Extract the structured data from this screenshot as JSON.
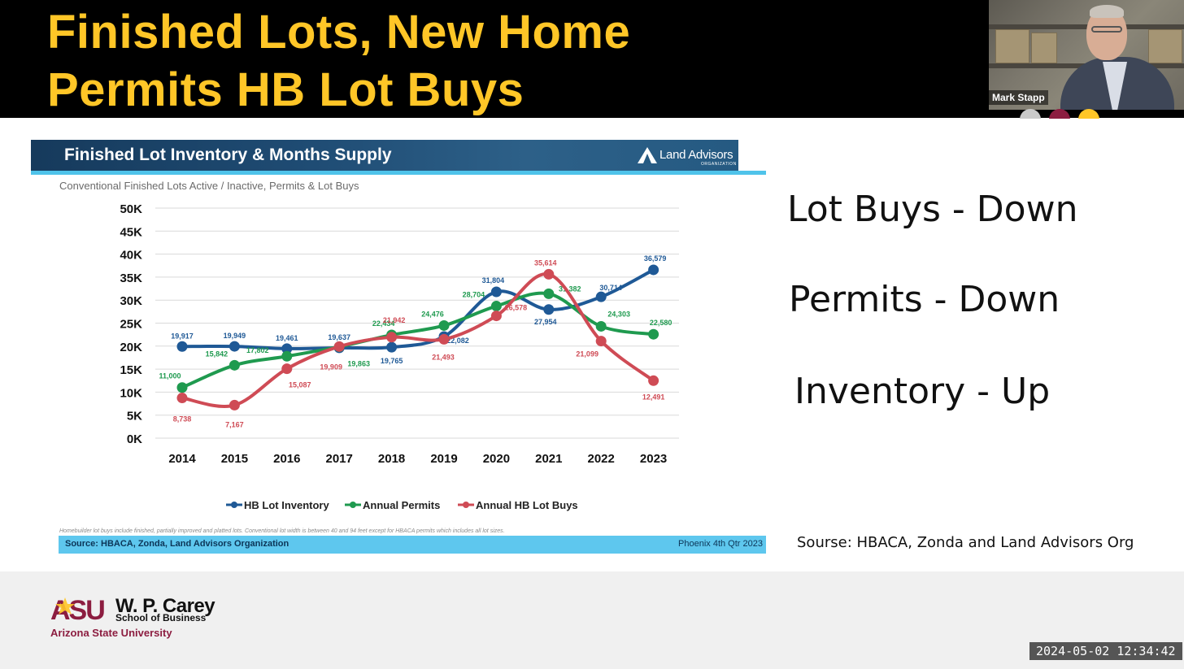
{
  "slide": {
    "title_line1": "Finished Lots, New Home",
    "title_line2": "Permits HB Lot Buys"
  },
  "participant": {
    "name": "Mark Stapp"
  },
  "chart_panel": {
    "header_title": "Finished Lot Inventory & Months Supply",
    "logo_text": "Land Advisors",
    "logo_subtext": "ORGANIZATION",
    "subtitle": "Conventional Finished Lots Active / Inactive, Permits & Lot Buys",
    "footnote": "Homebuilder lot buys include finished, partially improved and platted lots. Conventional lot width is between 40 and 94 feet except for HBACA permits which includes all lot sizes.",
    "source_left": "Source: HBACA, Zonda, Land Advisors Organization",
    "source_right": "Phoenix 4th Qtr 2023",
    "header_color": "#1f4c74",
    "accent_color": "#5ec7ee"
  },
  "chart_data": {
    "type": "line",
    "categories": [
      "2014",
      "2015",
      "2016",
      "2017",
      "2018",
      "2019",
      "2020",
      "2021",
      "2022",
      "2023"
    ],
    "ylim": [
      0,
      50000
    ],
    "y_ticks": [
      "0K",
      "5K",
      "10K",
      "15K",
      "20K",
      "25K",
      "30K",
      "35K",
      "40K",
      "45K",
      "50K"
    ],
    "grid": true,
    "legend_position": "bottom",
    "series": [
      {
        "name": "HB Lot Inventory",
        "color": "#1f5996",
        "values": [
          19917,
          19949,
          19461,
          19637,
          19765,
          22082,
          31804,
          27954,
          30714,
          36579
        ],
        "labels": [
          "19,917",
          "19,949",
          "19,461",
          "19,637",
          "19,765",
          "22,082",
          "31,804",
          "27,954",
          "30,714",
          "36,579"
        ]
      },
      {
        "name": "Annual Permits",
        "color": "#1f9a4f",
        "values": [
          11000,
          15842,
          17802,
          19863,
          22434,
          24476,
          28704,
          31382,
          24303,
          22580
        ],
        "labels": [
          "11,000",
          "15,842",
          "17,802",
          "19,863",
          "22,434",
          "24,476",
          "28,704",
          "31,382",
          "24,303",
          "22,580"
        ]
      },
      {
        "name": "Annual HB Lot Buys",
        "color": "#cf4b55",
        "values": [
          8738,
          7167,
          15087,
          19909,
          21942,
          21493,
          26578,
          35614,
          21099,
          12491
        ],
        "labels": [
          "8,738",
          "7,167",
          "15,087",
          "19,909",
          "21,942",
          "21,493",
          "26,578",
          "35,614",
          "21,099",
          "12,491"
        ]
      }
    ]
  },
  "bullets": {
    "lot_buys": "Lot Buys - Down",
    "permits": "Permits - Down",
    "inventory": "Inventory - Up",
    "source": "Sourse: HBACA, Zonda and Land Advisors Org"
  },
  "footer": {
    "asu_mark": "ASU",
    "wp_carey": "W. P. Carey",
    "school": "School of Business",
    "university": "Arizona State University",
    "asu_color": "#8c1d40",
    "gold_color": "#ffc627"
  },
  "timestamp": "2024-05-02 12:34:42"
}
